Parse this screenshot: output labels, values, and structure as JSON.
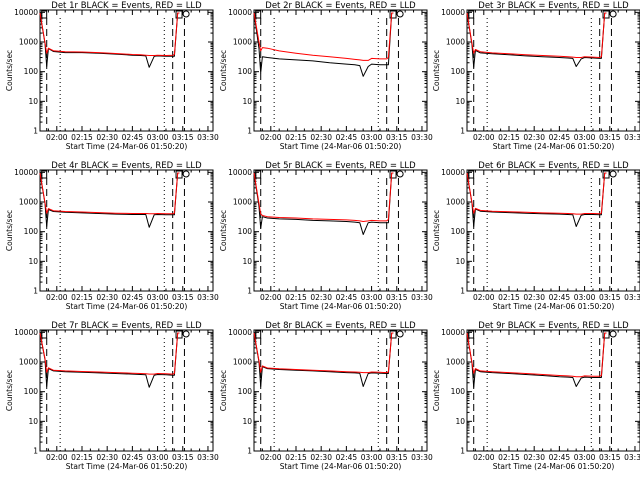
{
  "figure": {
    "panel_titles": [
      "Det 1r BLACK = Events, RED = LLD",
      "Det 2r BLACK = Events, RED = LLD",
      "Det 3r BLACK = Events, RED = LLD",
      "Det 4r BLACK = Events, RED = LLD",
      "Det 5r BLACK = Events, RED = LLD",
      "Det 6r BLACK = Events, RED = LLD",
      "Det 7r BLACK = Events, RED = LLD",
      "Det 8r BLACK = Events, RED = LLD",
      "Det 9r BLACK = Events, RED = LLD"
    ],
    "xlabel": "Start Time (24-Mar-06 01:50:20)",
    "ylabel": "Counts/sec",
    "xticks": [
      "02:00",
      "02:15",
      "02:30",
      "02:45",
      "03:00",
      "03:15",
      "03:30"
    ],
    "yticks": [
      "1",
      "10",
      "100",
      "1000",
      "10000"
    ],
    "colors": {
      "events": "#000000",
      "lld": "#ff0000",
      "axes": "#000000"
    }
  },
  "chart_data": [
    {
      "type": "line",
      "title": "Det 1r BLACK = Events, RED = LLD",
      "xlabel": "Start Time (24-Mar-06 01:50:20)",
      "ylabel": "Counts/sec",
      "y_scale": "log",
      "xlim": [
        "01:50",
        "03:33"
      ],
      "ylim": [
        1,
        12000
      ],
      "x": [
        "01:50",
        "01:53",
        "01:54",
        "01:55",
        "01:58",
        "02:05",
        "02:15",
        "02:25",
        "02:35",
        "02:45",
        "02:50",
        "02:53",
        "02:55",
        "02:58",
        "03:00",
        "03:05",
        "03:09",
        "03:10",
        "03:12",
        "03:13"
      ],
      "series": [
        {
          "name": "BLACK = Events",
          "values": [
            9500,
            900,
            150,
            600,
            480,
            440,
            440,
            420,
            390,
            360,
            350,
            340,
            140,
            330,
            340,
            330,
            330,
            330,
            9500,
            9500
          ]
        },
        {
          "name": "RED = LLD",
          "values": [
            9500,
            950,
            420,
            620,
            510,
            470,
            460,
            440,
            410,
            380,
            370,
            360,
            350,
            350,
            360,
            350,
            360,
            380,
            9500,
            9500
          ]
        }
      ]
    },
    {
      "type": "line",
      "title": "Det 2r BLACK = Events, RED = LLD",
      "xlabel": "Start Time (24-Mar-06 01:50:20)",
      "ylabel": "Counts/sec",
      "y_scale": "log",
      "xlim": [
        "01:50",
        "03:33"
      ],
      "ylim": [
        1,
        12000
      ],
      "x": [
        "01:50",
        "01:53",
        "01:54",
        "01:55",
        "01:58",
        "02:05",
        "02:15",
        "02:25",
        "02:35",
        "02:45",
        "02:50",
        "02:53",
        "02:55",
        "02:58",
        "03:00",
        "03:05",
        "03:09",
        "03:10",
        "03:12",
        "03:13"
      ],
      "series": [
        {
          "name": "BLACK = Events",
          "values": [
            9500,
            600,
            90,
            320,
            300,
            270,
            250,
            230,
            200,
            180,
            170,
            160,
            70,
            150,
            180,
            170,
            170,
            170,
            9500,
            9500
          ]
        },
        {
          "name": "RED = LLD",
          "values": [
            9500,
            1000,
            500,
            650,
            620,
            500,
            420,
            360,
            320,
            280,
            260,
            250,
            240,
            240,
            280,
            270,
            270,
            300,
            9500,
            9500
          ]
        }
      ]
    },
    {
      "type": "line",
      "title": "Det 3r BLACK = Events, RED = LLD",
      "xlabel": "Start Time (24-Mar-06 01:50:20)",
      "ylabel": "Counts/sec",
      "y_scale": "log",
      "xlim": [
        "01:50",
        "03:33"
      ],
      "ylim": [
        1,
        12000
      ],
      "x": [
        "01:50",
        "01:53",
        "01:54",
        "01:55",
        "01:58",
        "02:05",
        "02:15",
        "02:25",
        "02:35",
        "02:45",
        "02:50",
        "02:53",
        "02:55",
        "02:58",
        "03:00",
        "03:05",
        "03:09",
        "03:10",
        "03:12",
        "03:13"
      ],
      "series": [
        {
          "name": "BLACK = Events",
          "values": [
            9500,
            800,
            140,
            520,
            430,
            400,
            370,
            340,
            320,
            300,
            290,
            280,
            150,
            270,
            300,
            290,
            280,
            280,
            9500,
            9500
          ]
        },
        {
          "name": "RED = LLD",
          "values": [
            9500,
            900,
            420,
            560,
            470,
            430,
            400,
            370,
            350,
            330,
            320,
            310,
            300,
            300,
            320,
            310,
            300,
            320,
            9500,
            9500
          ]
        }
      ]
    },
    {
      "type": "line",
      "title": "Det 4r BLACK = Events, RED = LLD",
      "xlabel": "Start Time (24-Mar-06 01:50:20)",
      "ylabel": "Counts/sec",
      "y_scale": "log",
      "xlim": [
        "01:50",
        "03:33"
      ],
      "ylim": [
        1,
        12000
      ],
      "x": [
        "01:50",
        "01:53",
        "01:54",
        "01:55",
        "01:58",
        "02:05",
        "02:15",
        "02:25",
        "02:35",
        "02:45",
        "02:50",
        "02:53",
        "02:55",
        "02:58",
        "03:00",
        "03:05",
        "03:09",
        "03:10",
        "03:12",
        "03:13"
      ],
      "series": [
        {
          "name": "BLACK = Events",
          "values": [
            9500,
            900,
            150,
            560,
            480,
            450,
            430,
            410,
            390,
            380,
            380,
            380,
            140,
            370,
            380,
            370,
            370,
            370,
            9500,
            9500
          ]
        },
        {
          "name": "RED = LLD",
          "values": [
            9500,
            950,
            420,
            600,
            510,
            480,
            460,
            440,
            420,
            410,
            410,
            410,
            400,
            400,
            410,
            400,
            400,
            420,
            9500,
            9500
          ]
        }
      ]
    },
    {
      "type": "line",
      "title": "Det 5r BLACK = Events, RED = LLD",
      "xlabel": "Start Time (24-Mar-06 01:50:20)",
      "ylabel": "Counts/sec",
      "y_scale": "log",
      "xlim": [
        "01:50",
        "03:33"
      ],
      "ylim": [
        1,
        12000
      ],
      "x": [
        "01:50",
        "01:53",
        "01:54",
        "01:55",
        "01:58",
        "02:05",
        "02:15",
        "02:25",
        "02:35",
        "02:45",
        "02:50",
        "02:53",
        "02:55",
        "02:58",
        "03:00",
        "03:05",
        "03:09",
        "03:10",
        "03:12",
        "03:13"
      ],
      "series": [
        {
          "name": "BLACK = Events",
          "values": [
            9500,
            700,
            130,
            320,
            290,
            270,
            260,
            240,
            230,
            220,
            210,
            200,
            80,
            200,
            210,
            200,
            200,
            200,
            9500,
            9500
          ]
        },
        {
          "name": "RED = LLD",
          "values": [
            9500,
            900,
            400,
            350,
            320,
            300,
            290,
            270,
            260,
            250,
            240,
            230,
            220,
            230,
            240,
            230,
            230,
            260,
            9500,
            9500
          ]
        }
      ]
    },
    {
      "type": "line",
      "title": "Det 6r BLACK = Events, RED = LLD",
      "xlabel": "Start Time (24-Mar-06 01:50:20)",
      "ylabel": "Counts/sec",
      "y_scale": "log",
      "xlim": [
        "01:50",
        "03:33"
      ],
      "ylim": [
        1,
        12000
      ],
      "x": [
        "01:50",
        "01:53",
        "01:54",
        "01:55",
        "01:58",
        "02:05",
        "02:15",
        "02:25",
        "02:35",
        "02:45",
        "02:50",
        "02:53",
        "02:55",
        "02:58",
        "03:00",
        "03:05",
        "03:09",
        "03:10",
        "03:12",
        "03:13"
      ],
      "series": [
        {
          "name": "BLACK = Events",
          "values": [
            9500,
            900,
            150,
            580,
            490,
            460,
            440,
            420,
            400,
            390,
            380,
            370,
            150,
            360,
            380,
            380,
            370,
            370,
            9500,
            9500
          ]
        },
        {
          "name": "RED = LLD",
          "values": [
            9500,
            950,
            420,
            610,
            520,
            490,
            470,
            450,
            430,
            420,
            410,
            400,
            390,
            390,
            410,
            410,
            400,
            420,
            9500,
            9500
          ]
        }
      ]
    },
    {
      "type": "line",
      "title": "Det 7r BLACK = Events, RED = LLD",
      "xlabel": "Start Time (24-Mar-06 01:50:20)",
      "ylabel": "Counts/sec",
      "y_scale": "log",
      "xlim": [
        "01:50",
        "03:33"
      ],
      "ylim": [
        1,
        12000
      ],
      "x": [
        "01:50",
        "01:53",
        "01:54",
        "01:55",
        "01:58",
        "02:05",
        "02:15",
        "02:25",
        "02:35",
        "02:45",
        "02:50",
        "02:53",
        "02:55",
        "02:58",
        "03:00",
        "03:05",
        "03:09",
        "03:10",
        "03:12",
        "03:13"
      ],
      "series": [
        {
          "name": "BLACK = Events",
          "values": [
            9500,
            1200,
            150,
            600,
            500,
            470,
            450,
            430,
            410,
            390,
            380,
            370,
            140,
            360,
            380,
            370,
            360,
            360,
            9500,
            9500
          ]
        },
        {
          "name": "RED = LLD",
          "values": [
            9500,
            1300,
            450,
            640,
            530,
            500,
            480,
            460,
            440,
            420,
            410,
            400,
            390,
            390,
            410,
            400,
            390,
            410,
            9500,
            9500
          ]
        }
      ]
    },
    {
      "type": "line",
      "title": "Det 8r BLACK = Events, RED = LLD",
      "xlabel": "Start Time (24-Mar-06 01:50:20)",
      "ylabel": "Counts/sec",
      "y_scale": "log",
      "xlim": [
        "01:50",
        "03:33"
      ],
      "ylim": [
        1,
        12000
      ],
      "x": [
        "01:50",
        "01:53",
        "01:54",
        "01:55",
        "01:58",
        "02:05",
        "02:15",
        "02:25",
        "02:35",
        "02:45",
        "02:50",
        "02:53",
        "02:55",
        "02:58",
        "03:00",
        "03:05",
        "03:09",
        "03:10",
        "03:12",
        "03:13"
      ],
      "series": [
        {
          "name": "BLACK = Events",
          "values": [
            9500,
            1000,
            150,
            700,
            600,
            560,
            530,
            500,
            470,
            440,
            430,
            420,
            150,
            410,
            430,
            420,
            410,
            410,
            9500,
            9500
          ]
        },
        {
          "name": "RED = LLD",
          "values": [
            9500,
            1100,
            450,
            740,
            630,
            590,
            560,
            530,
            500,
            470,
            460,
            450,
            440,
            440,
            460,
            450,
            440,
            460,
            9500,
            9500
          ]
        }
      ]
    },
    {
      "type": "line",
      "title": "Det 9r BLACK = Events, RED = LLD",
      "xlabel": "Start Time (24-Mar-06 01:50:20)",
      "ylabel": "Counts/sec",
      "y_scale": "log",
      "xlim": [
        "01:50",
        "03:33"
      ],
      "ylim": [
        1,
        12000
      ],
      "x": [
        "01:50",
        "01:53",
        "01:54",
        "01:55",
        "01:58",
        "02:05",
        "02:15",
        "02:25",
        "02:35",
        "02:45",
        "02:50",
        "02:53",
        "02:55",
        "02:58",
        "03:00",
        "03:05",
        "03:09",
        "03:10",
        "03:12",
        "03:13"
      ],
      "series": [
        {
          "name": "BLACK = Events",
          "values": [
            9500,
            900,
            140,
            560,
            470,
            440,
            410,
            380,
            350,
            320,
            310,
            300,
            150,
            290,
            310,
            300,
            300,
            300,
            9500,
            9500
          ]
        },
        {
          "name": "RED = LLD",
          "values": [
            9500,
            950,
            420,
            600,
            500,
            470,
            440,
            410,
            380,
            350,
            340,
            330,
            320,
            320,
            340,
            330,
            330,
            350,
            9500,
            9500
          ]
        }
      ]
    }
  ]
}
